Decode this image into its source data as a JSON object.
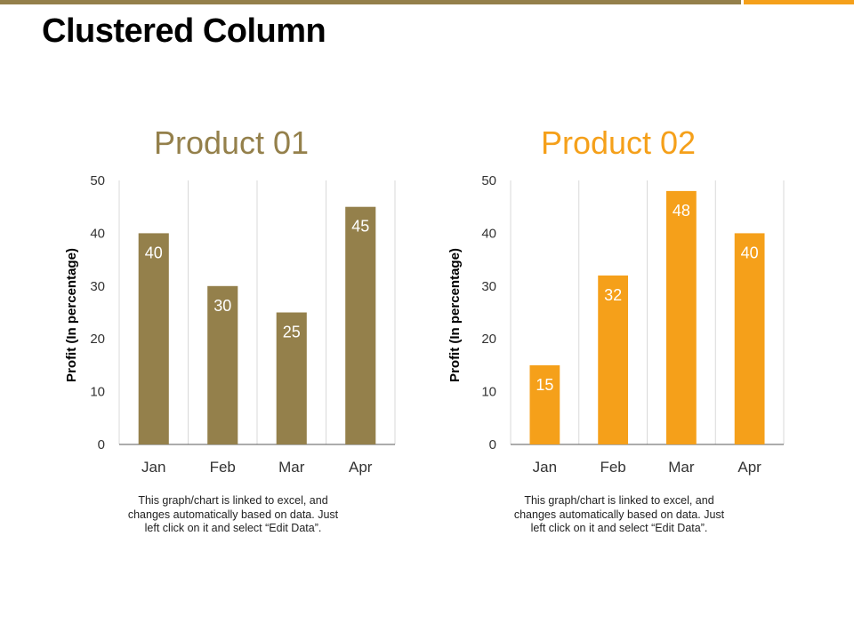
{
  "page": {
    "title": "Clustered Column",
    "accent_colors": {
      "bar": "#94804b",
      "accent": "#f5a01a"
    }
  },
  "chart_data": [
    {
      "type": "bar",
      "title": "Product 01",
      "title_color": "#94804b",
      "bar_color": "#94804b",
      "categories": [
        "Jan",
        "Feb",
        "Mar",
        "Apr"
      ],
      "values": [
        40,
        30,
        25,
        45
      ],
      "ylabel": "Profit  (In percentage)",
      "xlabel": "",
      "ylim": [
        0,
        50
      ],
      "yticks": [
        0,
        10,
        20,
        30,
        40,
        50
      ],
      "grid": "vertical",
      "data_labels": true,
      "caption": "This graph/chart is linked to excel, and changes automatically based on data. Just left click on it and select “Edit Data”."
    },
    {
      "type": "bar",
      "title": "Product 02",
      "title_color": "#f5a01a",
      "bar_color": "#f5a01a",
      "categories": [
        "Jan",
        "Feb",
        "Mar",
        "Apr"
      ],
      "values": [
        15,
        32,
        48,
        40
      ],
      "ylabel": "Profit  (In percentage)",
      "xlabel": "",
      "ylim": [
        0,
        50
      ],
      "yticks": [
        0,
        10,
        20,
        30,
        40,
        50
      ],
      "grid": "vertical",
      "data_labels": true,
      "caption": "This graph/chart is linked to excel, and changes automatically based on data. Just left click on it and select “Edit Data”."
    }
  ]
}
